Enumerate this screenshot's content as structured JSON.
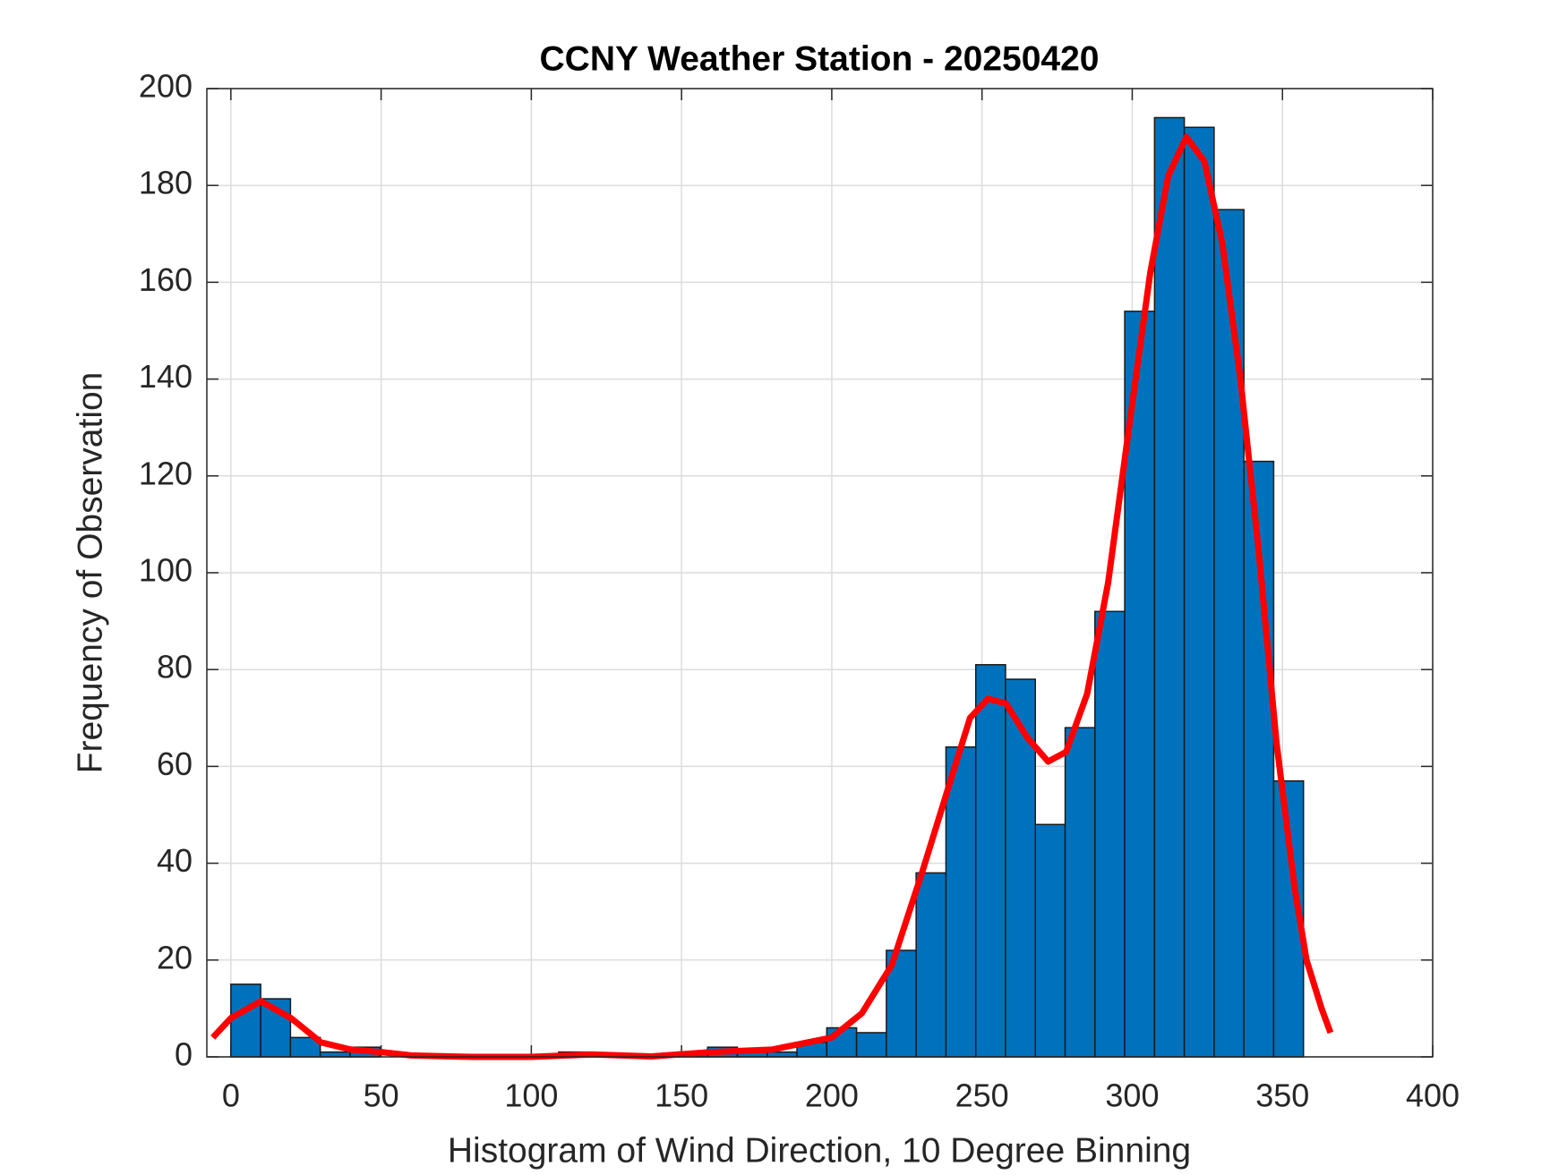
{
  "chart_data": {
    "type": "histogram",
    "title": "CCNY Weather Station - 20250420",
    "xlabel": "Histogram of Wind Direction, 10 Degree Binning",
    "ylabel": "Frequency of Observation",
    "bins": [
      0,
      9.92,
      19.83,
      29.75,
      39.67,
      49.58,
      59.5,
      69.42,
      79.33,
      89.25,
      99.17,
      109.08,
      119,
      128.92,
      138.83,
      148.75,
      158.67,
      168.58,
      178.5,
      188.42,
      198.33,
      208.25,
      218.17,
      228.08,
      238,
      247.92,
      257.83,
      267.75,
      277.67,
      287.58,
      297.5,
      307.42,
      317.33,
      327.25,
      337.17,
      347.08,
      357
    ],
    "values": [
      15,
      12,
      4,
      1,
      2,
      0,
      0,
      0,
      0,
      0,
      0,
      1,
      0,
      0,
      0,
      1,
      2,
      1,
      1,
      3,
      6,
      5,
      22,
      38,
      64,
      81,
      78,
      48,
      68,
      92,
      154,
      194,
      192,
      175,
      123,
      57
    ],
    "color": "#0072bd",
    "curve": {
      "color": "#ff0000",
      "x": [
        -6,
        0,
        10,
        20,
        30,
        40,
        50,
        60,
        80,
        100,
        120,
        140,
        160,
        180,
        200,
        210,
        220,
        230,
        240,
        246,
        252,
        258,
        265,
        272,
        278,
        285,
        292,
        300,
        306,
        312,
        318,
        324,
        330,
        336,
        342,
        348,
        354,
        358,
        363,
        366
      ],
      "y": [
        4,
        8,
        11.5,
        8,
        3,
        1.5,
        1,
        0.3,
        0,
        0,
        0.5,
        0.1,
        1,
        1.5,
        4,
        9,
        19,
        38,
        58,
        70,
        74,
        73,
        66,
        61,
        63,
        75,
        98,
        135,
        162,
        182,
        190,
        185,
        168,
        140,
        105,
        65,
        35,
        20,
        10,
        5
      ]
    },
    "xlim": [
      -8,
      400
    ],
    "ylim": [
      0,
      200
    ],
    "xticks": [
      0,
      50,
      100,
      150,
      200,
      250,
      300,
      350,
      400
    ],
    "yticks": [
      0,
      20,
      40,
      60,
      80,
      100,
      120,
      140,
      160,
      180,
      200
    ],
    "grid": true
  }
}
